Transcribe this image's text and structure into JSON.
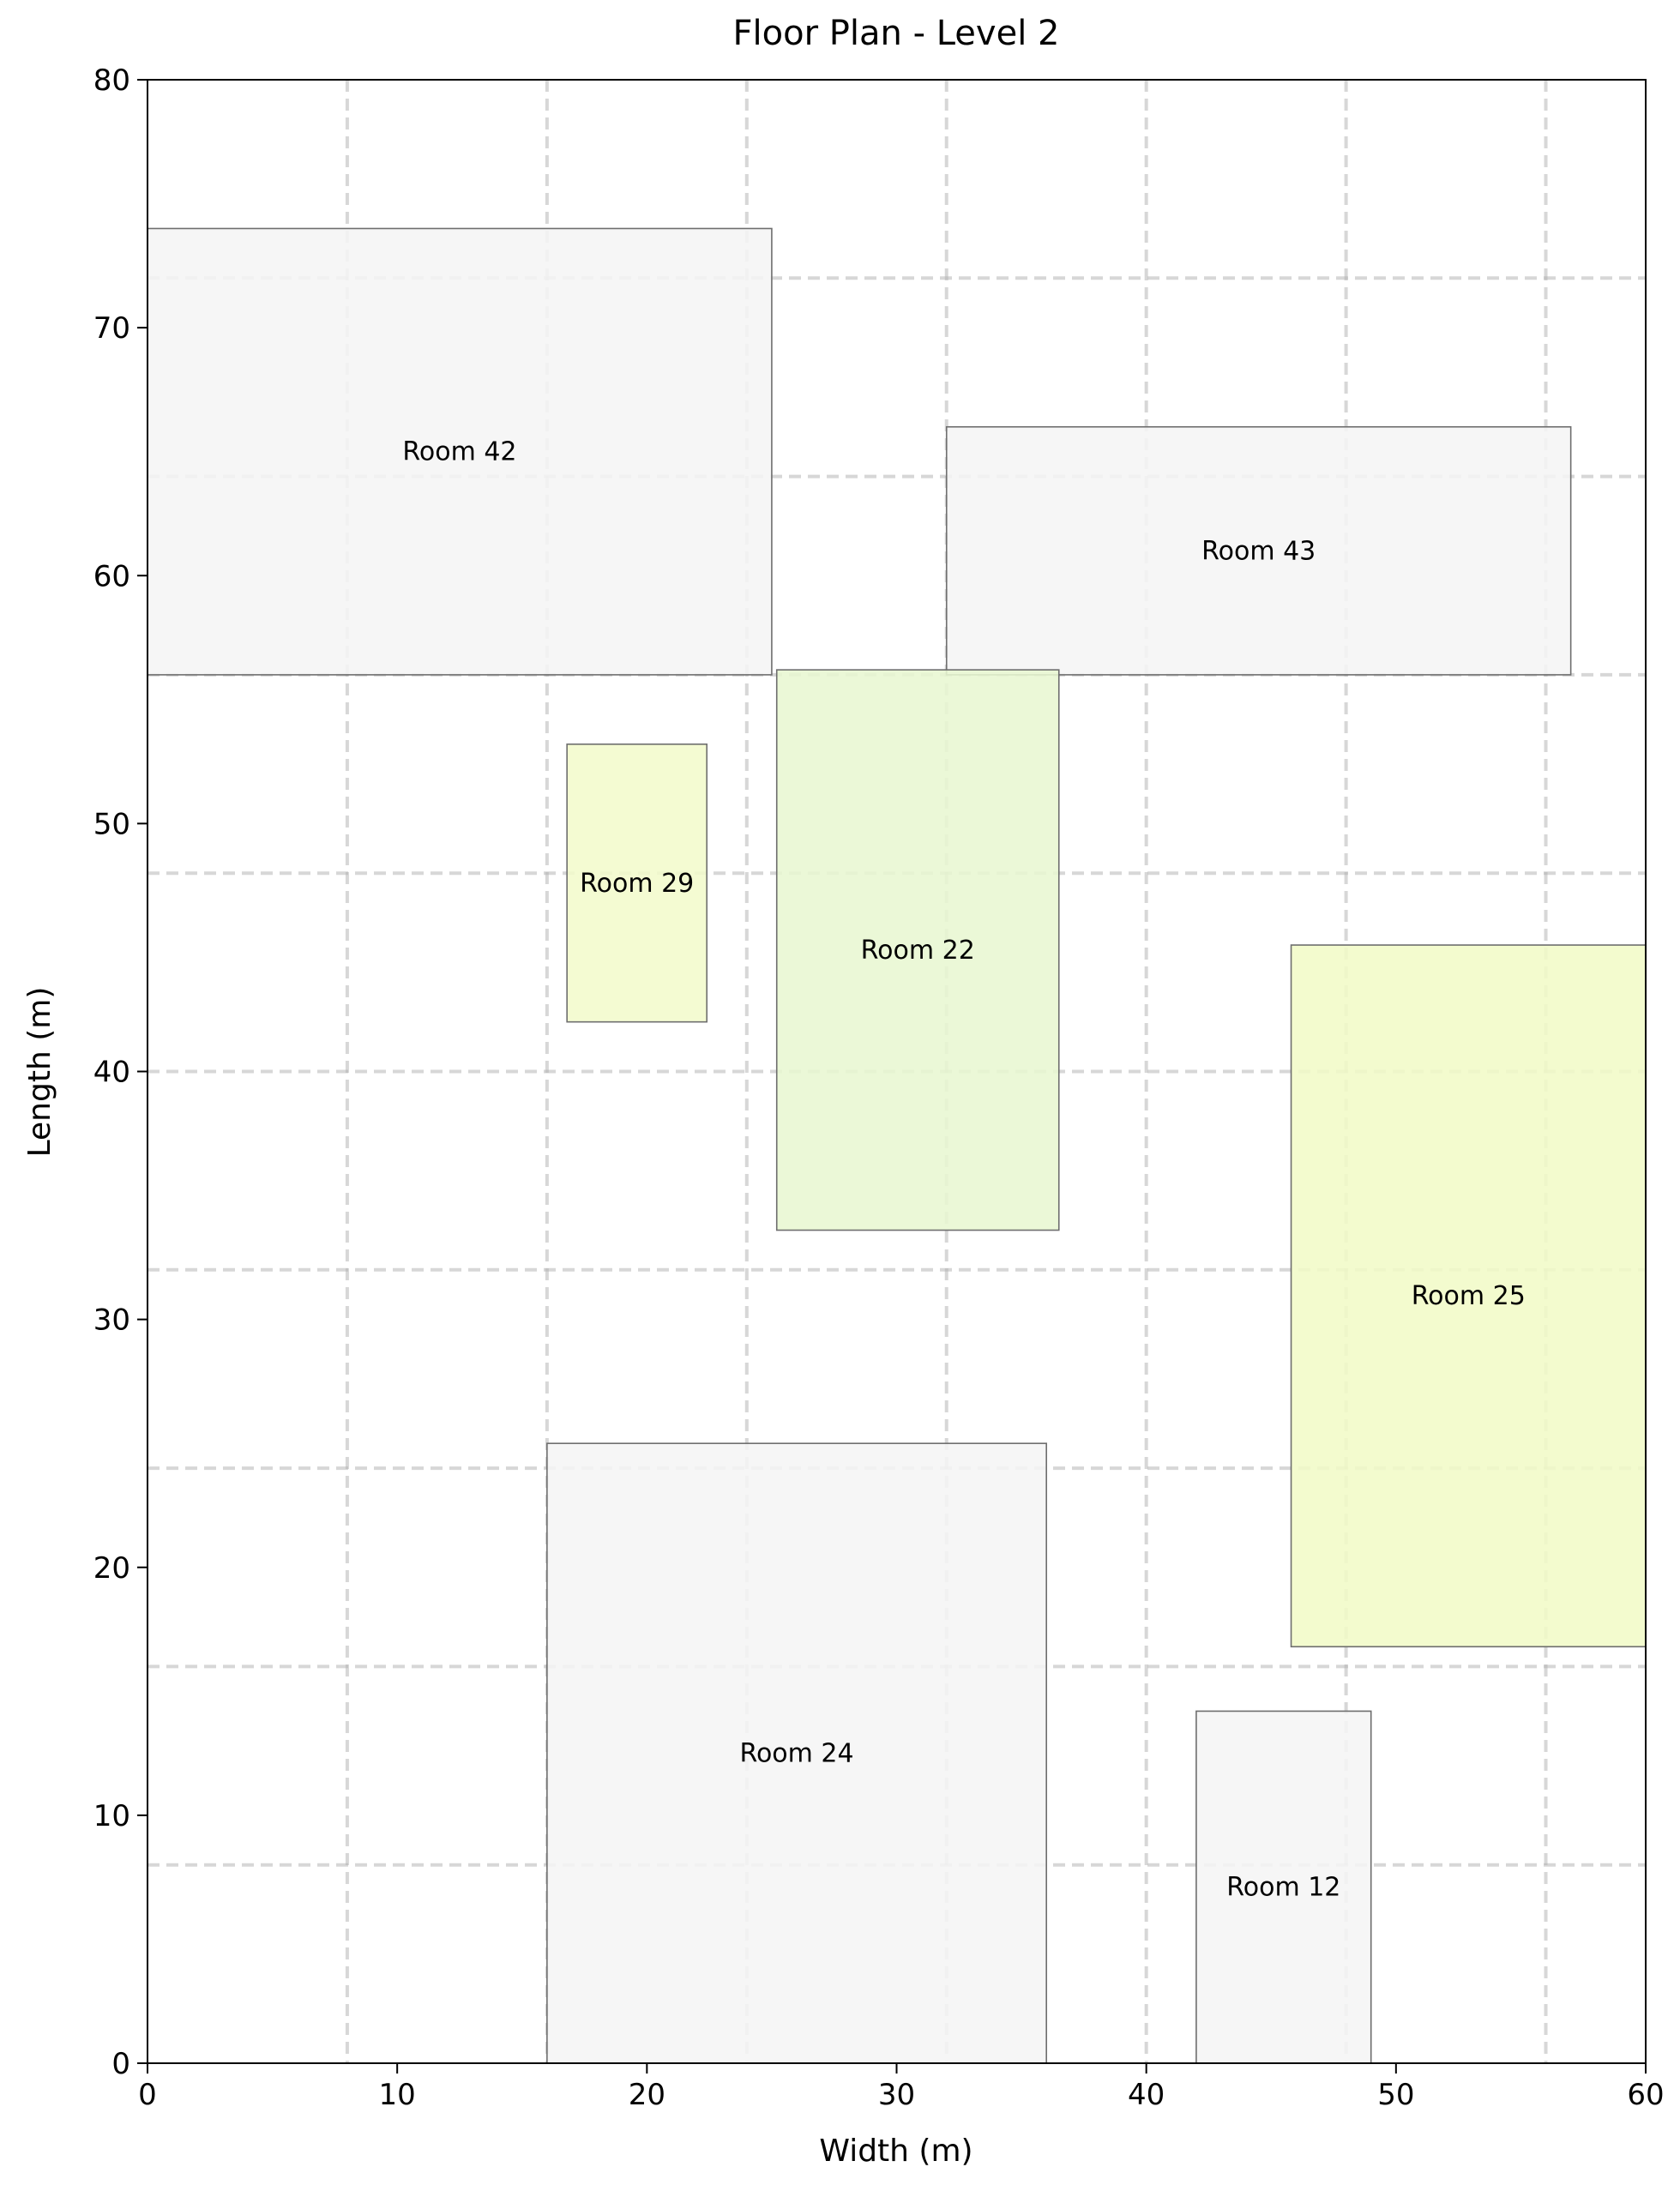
{
  "chart_data": {
    "type": "floor-plan",
    "title": "Floor Plan - Level 2",
    "xlabel": "Width (m)",
    "ylabel": "Length (m)",
    "xlim": [
      0,
      60
    ],
    "ylim": [
      0,
      80
    ],
    "xticks": [
      0,
      10,
      20,
      30,
      40,
      50,
      60
    ],
    "yticks": [
      0,
      10,
      20,
      30,
      40,
      50,
      60,
      70,
      80
    ],
    "grid": true,
    "grid_x": [
      8,
      16,
      24,
      32,
      40,
      48,
      56
    ],
    "grid_y": [
      8,
      16,
      24,
      32,
      40,
      48,
      56,
      64,
      72
    ],
    "rooms": [
      {
        "name": "Room 42",
        "x": 0,
        "y": 56,
        "width": 25,
        "height": 18,
        "color": "#f5f5f5"
      },
      {
        "name": "Room 43",
        "x": 32,
        "y": 56,
        "width": 25,
        "height": 10,
        "color": "#f5f5f5"
      },
      {
        "name": "Room 29",
        "x": 16.8,
        "y": 42,
        "width": 5.6,
        "height": 11.2,
        "color": "#f3facc"
      },
      {
        "name": "Room 22",
        "x": 25.2,
        "y": 33.6,
        "width": 11.3,
        "height": 22.6,
        "color": "#e8f7d2"
      },
      {
        "name": "Room 25",
        "x": 45.8,
        "y": 16.8,
        "width": 14.2,
        "height": 28.3,
        "color": "#f1fac7"
      },
      {
        "name": "Room 24",
        "x": 16,
        "y": 0,
        "width": 20,
        "height": 25,
        "color": "#f5f5f5"
      },
      {
        "name": "Room 12",
        "x": 42,
        "y": 0,
        "width": 7,
        "height": 14.2,
        "color": "#f5f5f5"
      }
    ]
  }
}
